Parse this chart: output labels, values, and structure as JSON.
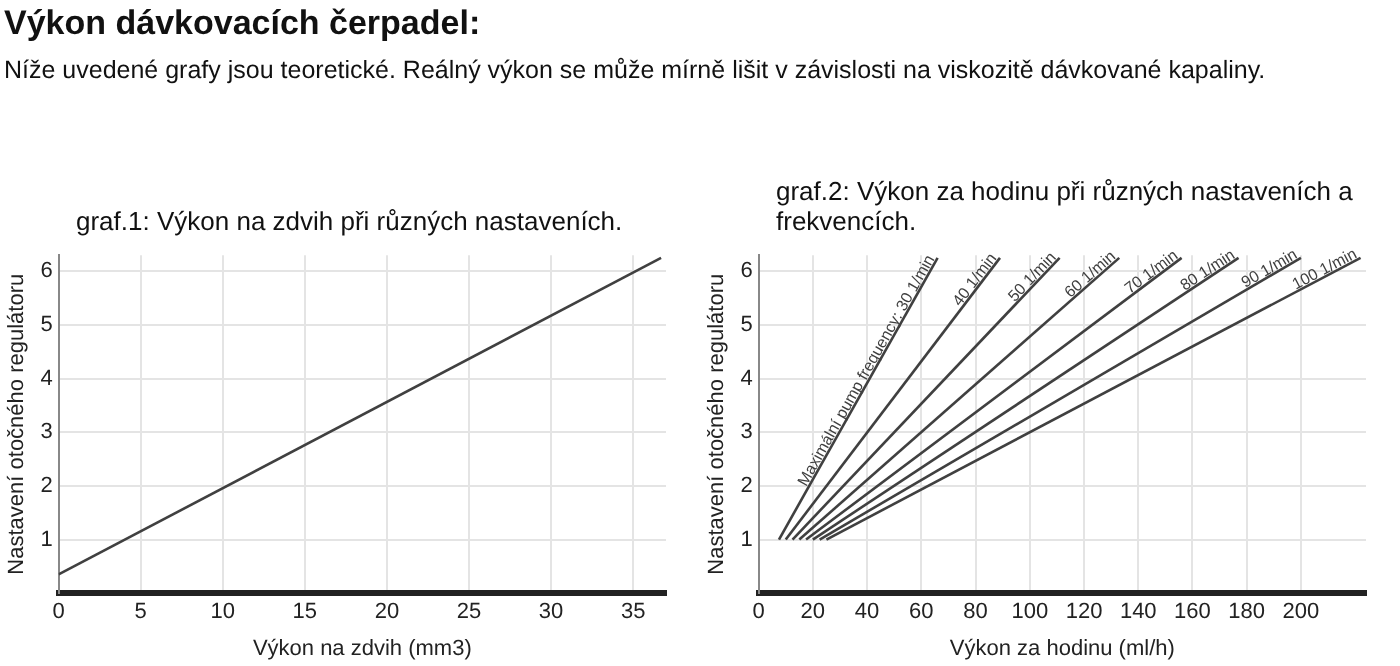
{
  "chart_data": [
    {
      "type": "line",
      "title": "graf.1: Výkon na zdvih při různých nastaveních.",
      "xlabel": "Výkon na zdvih (mm3)",
      "ylabel": "Nastavení otočného regulátoru",
      "annotations": [
        "Výkon dávkovacích čerpadel:",
        "Níže uvedené grafy jsou teoretické. Reálný výkon se může mírně lišit v závislosti na viskozitě dávkované kapaliny."
      ],
      "series": [
        {
          "color": "#404040",
          "x": [
            0,
            36.7
          ],
          "values": [
            0.35,
            6.25
          ]
        }
      ],
      "xlim": [
        0,
        37
      ],
      "xticks": [
        0,
        5,
        10,
        15,
        20,
        25,
        30,
        35
      ],
      "ylim": [
        0,
        6.3
      ],
      "yticks": [
        1,
        2,
        3,
        4,
        5,
        6
      ],
      "grid": true,
      "legend": false,
      "marker": "none",
      "line_style": "solid"
    },
    {
      "type": "line",
      "title": "graf.2: Výkon za hodinu při různých nastaveních a frekvencích.",
      "xlabel": "Výkon za hodinu (ml/h)",
      "ylabel": "Nastavení otočného regulátoru",
      "series": [
        {
          "name": "Maximální pump frequency: 30 1/min",
          "color": "#404040",
          "x": [
            7.5,
            66
          ],
          "values": [
            1,
            6.25
          ]
        },
        {
          "name": "40 1/min",
          "color": "#404040",
          "x": [
            10,
            89
          ],
          "values": [
            1,
            6.25
          ]
        },
        {
          "name": "50 1/min",
          "color": "#404040",
          "x": [
            12.5,
            111
          ],
          "values": [
            1,
            6.25
          ]
        },
        {
          "name": "60 1/min",
          "color": "#404040",
          "x": [
            15,
            133
          ],
          "values": [
            1,
            6.25
          ]
        },
        {
          "name": "70 1/min",
          "color": "#404040",
          "x": [
            17.5,
            156
          ],
          "values": [
            1,
            6.25
          ]
        },
        {
          "name": "80 1/min",
          "color": "#404040",
          "x": [
            20,
            177
          ],
          "values": [
            1,
            6.25
          ]
        },
        {
          "name": "90 1/min",
          "color": "#404040",
          "x": [
            22.5,
            200
          ],
          "values": [
            1,
            6.25
          ]
        },
        {
          "name": "100 1/min",
          "color": "#404040",
          "x": [
            25,
            222
          ],
          "values": [
            1,
            6.25
          ]
        }
      ],
      "xlim": [
        0,
        224
      ],
      "xticks": [
        0,
        20,
        40,
        60,
        80,
        100,
        120,
        140,
        160,
        180,
        200
      ],
      "ylim": [
        0,
        6.3
      ],
      "yticks": [
        1,
        2,
        3,
        4,
        5,
        6
      ],
      "grid": true,
      "legend": false,
      "marker": "none",
      "line_style": "solid"
    }
  ]
}
